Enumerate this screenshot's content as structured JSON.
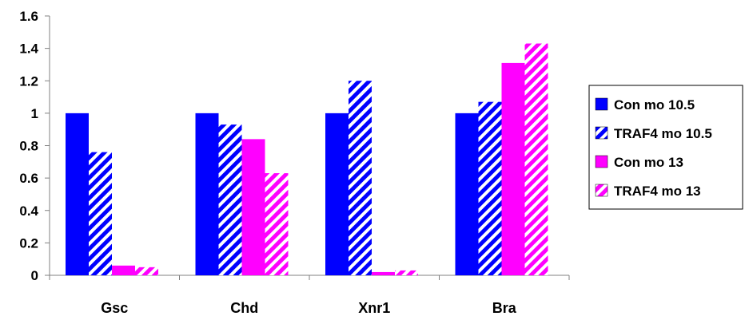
{
  "chart_data": {
    "type": "bar",
    "categories": [
      "Gsc",
      "Chd",
      "Xnr1",
      "Bra"
    ],
    "series": [
      {
        "name": "Con mo 10.5",
        "values": [
          1.0,
          1.0,
          1.0,
          1.0
        ],
        "color": "#0000ff",
        "pattern": "solid"
      },
      {
        "name": "TRAF4 mo 10.5",
        "values": [
          0.76,
          0.93,
          1.2,
          1.07
        ],
        "color": "#0000ff",
        "pattern": "hatched"
      },
      {
        "name": "Con mo 13",
        "values": [
          0.06,
          0.84,
          0.02,
          1.31
        ],
        "color": "#ff00ff",
        "pattern": "solid"
      },
      {
        "name": "TRAF4 mo 13",
        "values": [
          0.05,
          0.63,
          0.03,
          1.43
        ],
        "color": "#ff00ff",
        "pattern": "hatched"
      }
    ],
    "y_ticks": [
      "0",
      "0.2",
      "0.4",
      "0.6",
      "0.8",
      "1",
      "1.2",
      "1.4",
      "1.6"
    ],
    "ylim": [
      0,
      1.6
    ],
    "grid": false,
    "legend_position": "right",
    "title": "",
    "xlabel": "",
    "ylabel": ""
  }
}
